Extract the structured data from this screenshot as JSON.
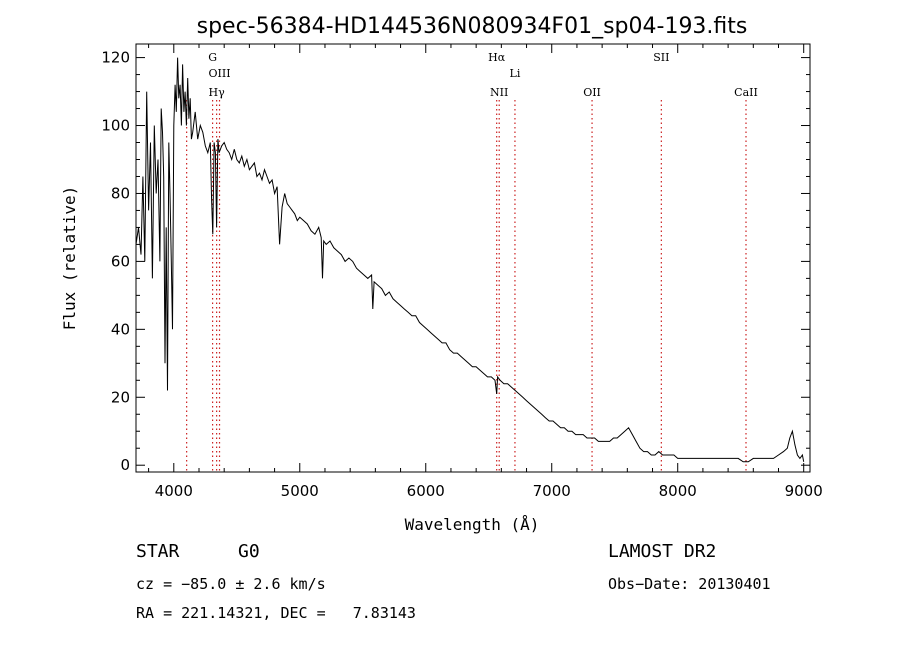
{
  "chart_data": {
    "type": "line",
    "title": "spec-56384-HD144536N080934F01_sp04-193.fits",
    "xlabel": "Wavelength (Å)",
    "ylabel": "Flux (relative)",
    "xlim": [
      3700,
      9050
    ],
    "ylim": [
      -2,
      124
    ],
    "xticks": [
      {
        "v": 4000,
        "label": "4000"
      },
      {
        "v": 5000,
        "label": "5000"
      },
      {
        "v": 6000,
        "label": "6000"
      },
      {
        "v": 7000,
        "label": "7000"
      },
      {
        "v": 8000,
        "label": "8000"
      },
      {
        "v": 9000,
        "label": "9000"
      }
    ],
    "yticks": [
      {
        "v": 0,
        "label": "0"
      },
      {
        "v": 20,
        "label": "20"
      },
      {
        "v": 40,
        "label": "40"
      },
      {
        "v": 60,
        "label": "60"
      },
      {
        "v": 80,
        "label": "80"
      },
      {
        "v": 100,
        "label": "100"
      },
      {
        "v": 120,
        "label": "120"
      }
    ],
    "line_color": "#000000",
    "marker_color": "#cc2222",
    "series": [
      {
        "x": [
          3700,
          3720,
          3740,
          3755,
          3770,
          3785,
          3800,
          3815,
          3830,
          3845,
          3860,
          3875,
          3890,
          3900,
          3910,
          3920,
          3930,
          3940,
          3950,
          3960,
          3970,
          3980,
          3990,
          4000,
          4010,
          4020,
          4030,
          4040,
          4050,
          4060,
          4070,
          4080,
          4090,
          4100,
          4110,
          4120,
          4130,
          4140,
          4150,
          4170,
          4190,
          4210,
          4230,
          4250,
          4270,
          4290,
          4300,
          4310,
          4320,
          4330,
          4340,
          4350,
          4360,
          4380,
          4400,
          4420,
          4440,
          4460,
          4480,
          4500,
          4520,
          4540,
          4560,
          4580,
          4600,
          4620,
          4640,
          4660,
          4680,
          4700,
          4720,
          4740,
          4760,
          4780,
          4800,
          4820,
          4840,
          4860,
          4880,
          4900,
          4920,
          4940,
          4960,
          4980,
          5000,
          5030,
          5060,
          5090,
          5120,
          5150,
          5170,
          5180,
          5190,
          5210,
          5240,
          5270,
          5300,
          5330,
          5360,
          5390,
          5420,
          5450,
          5480,
          5510,
          5540,
          5570,
          5580,
          5590,
          5620,
          5650,
          5680,
          5710,
          5740,
          5770,
          5800,
          5830,
          5860,
          5890,
          5920,
          5950,
          5980,
          6010,
          6040,
          6070,
          6100,
          6130,
          6160,
          6190,
          6220,
          6250,
          6280,
          6310,
          6340,
          6370,
          6400,
          6430,
          6460,
          6490,
          6520,
          6550,
          6563,
          6570,
          6590,
          6620,
          6650,
          6680,
          6710,
          6740,
          6770,
          6800,
          6830,
          6860,
          6890,
          6920,
          6950,
          6980,
          7010,
          7040,
          7070,
          7100,
          7130,
          7160,
          7190,
          7220,
          7250,
          7280,
          7310,
          7340,
          7370,
          7400,
          7430,
          7460,
          7490,
          7520,
          7550,
          7580,
          7610,
          7640,
          7670,
          7700,
          7730,
          7760,
          7790,
          7820,
          7850,
          7880,
          7910,
          7940,
          7970,
          8000,
          8040,
          8080,
          8120,
          8160,
          8200,
          8240,
          8280,
          8320,
          8360,
          8400,
          8440,
          8480,
          8520,
          8560,
          8600,
          8640,
          8680,
          8720,
          8760,
          8800,
          8840,
          8870,
          8890,
          8910,
          8930,
          8950,
          8970,
          8990,
          9000
        ],
        "y": [
          65,
          70,
          62,
          85,
          60,
          110,
          75,
          95,
          55,
          100,
          80,
          90,
          60,
          105,
          98,
          85,
          30,
          70,
          22,
          95,
          80,
          60,
          40,
          100,
          112,
          104,
          120,
          108,
          112,
          100,
          118,
          104,
          110,
          100,
          114,
          102,
          108,
          96,
          98,
          104,
          96,
          100,
          98,
          94,
          92,
          95,
          78,
          68,
          95,
          92,
          70,
          96,
          92,
          94,
          95,
          93,
          92,
          90,
          93,
          90,
          89,
          91,
          88,
          90,
          87,
          88,
          89,
          85,
          86,
          84,
          87,
          85,
          83,
          84,
          80,
          82,
          65,
          76,
          80,
          77,
          76,
          75,
          74,
          72,
          73,
          72,
          71,
          69,
          68,
          70,
          67,
          55,
          66,
          65,
          66,
          64,
          63,
          62,
          60,
          61,
          60,
          58,
          57,
          56,
          55,
          56,
          46,
          54,
          53,
          52,
          50,
          51,
          49,
          48,
          47,
          46,
          45,
          44,
          44,
          42,
          41,
          40,
          39,
          38,
          37,
          36,
          36,
          34,
          33,
          33,
          32,
          31,
          30,
          29,
          29,
          28,
          27,
          26,
          26,
          25,
          21,
          26,
          25,
          24,
          24,
          23,
          22,
          21,
          20,
          19,
          18,
          17,
          16,
          15,
          14,
          13,
          13,
          12,
          11,
          11,
          10,
          10,
          9,
          9,
          9,
          8,
          8,
          8,
          7,
          7,
          7,
          7,
          8,
          8,
          9,
          10,
          11,
          9,
          7,
          5,
          4,
          4,
          3,
          3,
          4,
          3,
          3,
          3,
          3,
          2,
          2,
          2,
          2,
          2,
          2,
          2,
          2,
          2,
          2,
          2,
          2,
          2,
          1,
          1,
          2,
          2,
          2,
          2,
          2,
          3,
          4,
          5,
          8,
          10,
          6,
          3,
          2,
          3,
          1
        ]
      }
    ],
    "line_markers": [
      {
        "name": "Hδ",
        "x": 4102,
        "row": 0,
        "show_label": false
      },
      {
        "name": "G",
        "x": 4308,
        "row": 0,
        "show_label": true
      },
      {
        "name": "OIII",
        "x": 4363,
        "row": 1,
        "show_label": true
      },
      {
        "name": "Hγ",
        "x": 4340,
        "row": 2,
        "show_label": true
      },
      {
        "name": "Hα",
        "x": 6563,
        "row": 0,
        "show_label": true
      },
      {
        "name": "NII",
        "x": 6583,
        "row": 2,
        "show_label": true
      },
      {
        "name": "Li",
        "x": 6708,
        "row": 1,
        "show_label": true
      },
      {
        "name": "OII",
        "x": 7320,
        "row": 2,
        "show_label": true
      },
      {
        "name": "SII",
        "x": 7870,
        "row": 0,
        "show_label": true
      },
      {
        "name": "CaII",
        "x": 8542,
        "row": 2,
        "show_label": true
      }
    ]
  },
  "footer": {
    "object_type": "STAR",
    "subclass": "G0",
    "survey": "LAMOST DR2",
    "cz": "cz = −85.0 ± 2.6 km/s",
    "obs_date": "Obs−Date: 20130401",
    "coords": "RA = 221.14321, DEC =   7.83143"
  }
}
